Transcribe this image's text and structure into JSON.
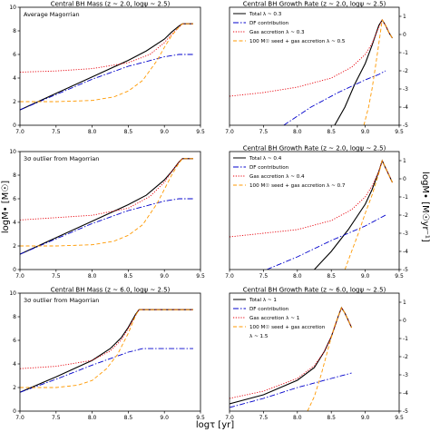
{
  "figure": {
    "x_axis_label": "logτ [yr]",
    "y_left_label": "logM• [M☉]",
    "y_right_label": "logṀ• [M☉yr⁻¹]"
  },
  "colors": {
    "total": "#000000",
    "df": "#0000cc",
    "gas": "#e8000b",
    "seed": "#ff9900"
  },
  "chart_data": [
    {
      "type": "line",
      "title": "Central BH Mass (z ~ 2.0, logψ ~ 2.5)",
      "annotation": "Average Magorrian",
      "xlim": [
        7.0,
        9.5
      ],
      "ylim": [
        0,
        10
      ],
      "xticks": [
        "7.0",
        "7.5",
        "8.0",
        "8.5",
        "9.0",
        "9.5"
      ],
      "yticks": [
        "0",
        "2",
        "4",
        "6",
        "8",
        "10"
      ],
      "legend": null,
      "series": [
        {
          "key": "total",
          "style": "solid",
          "x": [
            7.0,
            7.5,
            8.0,
            8.5,
            8.75,
            9.0,
            9.1,
            9.2,
            9.25,
            9.3,
            9.4
          ],
          "y": [
            1.3,
            2.7,
            4.1,
            5.5,
            6.3,
            7.3,
            7.9,
            8.4,
            8.6,
            8.6,
            8.6
          ]
        },
        {
          "key": "df",
          "style": "dashdot",
          "x": [
            7.0,
            7.5,
            8.0,
            8.5,
            9.0,
            9.2,
            9.4
          ],
          "y": [
            1.3,
            2.6,
            3.9,
            5.0,
            5.8,
            6.0,
            6.0
          ]
        },
        {
          "key": "gas",
          "style": "dotted",
          "x": [
            7.0,
            7.5,
            8.0,
            8.5,
            8.8,
            9.0,
            9.1,
            9.2,
            9.25,
            9.3,
            9.4
          ],
          "y": [
            4.5,
            4.6,
            4.8,
            5.3,
            6.0,
            7.0,
            7.7,
            8.3,
            8.6,
            8.6,
            8.6
          ]
        },
        {
          "key": "seed",
          "style": "dashed",
          "x": [
            7.0,
            7.5,
            8.0,
            8.3,
            8.5,
            8.7,
            8.9,
            9.0,
            9.1,
            9.2,
            9.25,
            9.3,
            9.4
          ],
          "y": [
            2.0,
            2.0,
            2.1,
            2.4,
            2.9,
            3.8,
            5.5,
            6.6,
            7.6,
            8.3,
            8.6,
            8.6,
            8.6
          ]
        }
      ]
    },
    {
      "type": "line",
      "title": "Central BH Growth Rate (z ~ 2.0, logψ ~ 2.5)",
      "annotation": "",
      "xlim": [
        7.0,
        9.5
      ],
      "ylim": [
        -5,
        1.5
      ],
      "xticks": [
        "7.0",
        "7.5",
        "8.0",
        "8.5",
        "9.0",
        "9.5"
      ],
      "yticks": [
        "1",
        "0",
        "-1",
        "-2",
        "-3",
        "-4",
        "-5"
      ],
      "legend": [
        {
          "key": "total",
          "style": "solid",
          "label": "Total λ ~ 0.3"
        },
        {
          "key": "df",
          "style": "dashdot",
          "label": "DF contribution"
        },
        {
          "key": "gas",
          "style": "dotted",
          "label": "Gas accretion λ ~ 0.3"
        },
        {
          "key": "seed",
          "style": "dashed",
          "label": "100 M☉ seed + gas accretion λ ~ 0.5"
        }
      ],
      "series": [
        {
          "key": "total",
          "style": "solid",
          "x": [
            8.55,
            8.7,
            8.85,
            9.0,
            9.1,
            9.2,
            9.25,
            9.3,
            9.35,
            9.4
          ],
          "y": [
            -5.0,
            -4.0,
            -2.7,
            -1.6,
            -0.6,
            0.5,
            0.8,
            0.5,
            0.1,
            -0.2
          ]
        },
        {
          "key": "df",
          "style": "dashdot",
          "x": [
            7.8,
            8.2,
            8.6,
            9.0,
            9.2,
            9.3
          ],
          "y": [
            -5.0,
            -4.0,
            -3.2,
            -2.5,
            -2.2,
            -2.0
          ]
        },
        {
          "key": "gas",
          "style": "dotted",
          "x": [
            7.0,
            7.5,
            8.0,
            8.5,
            8.8,
            9.0,
            9.1,
            9.2,
            9.25,
            9.3,
            9.35,
            9.4
          ],
          "y": [
            -3.4,
            -3.2,
            -2.9,
            -2.4,
            -1.8,
            -1.1,
            -0.5,
            0.4,
            0.8,
            0.5,
            0.1,
            -0.2
          ]
        },
        {
          "key": "seed",
          "style": "dashed",
          "x": [
            8.98,
            9.05,
            9.1,
            9.15,
            9.2,
            9.25,
            9.3,
            9.35,
            9.4
          ],
          "y": [
            -5.0,
            -4.0,
            -3.0,
            -1.8,
            -0.5,
            0.8,
            0.5,
            0.1,
            -0.2
          ]
        }
      ]
    },
    {
      "type": "line",
      "title": "",
      "annotation": "3σ outlier from Magorrian",
      "xlim": [
        7.0,
        9.5
      ],
      "ylim": [
        0,
        10
      ],
      "xticks": [
        "7.0",
        "7.5",
        "8.0",
        "8.5",
        "9.0",
        "9.5"
      ],
      "yticks": [
        "0",
        "2",
        "4",
        "6",
        "8",
        "10"
      ],
      "legend": null,
      "series": [
        {
          "key": "total",
          "style": "solid",
          "x": [
            7.0,
            7.5,
            8.0,
            8.5,
            8.75,
            9.0,
            9.1,
            9.2,
            9.25,
            9.3,
            9.4
          ],
          "y": [
            1.3,
            2.7,
            4.1,
            5.5,
            6.3,
            7.6,
            8.3,
            9.1,
            9.4,
            9.4,
            9.4
          ]
        },
        {
          "key": "df",
          "style": "dashdot",
          "x": [
            7.0,
            7.5,
            8.0,
            8.5,
            9.0,
            9.2,
            9.4
          ],
          "y": [
            1.3,
            2.6,
            3.9,
            5.0,
            5.8,
            6.0,
            6.0
          ]
        },
        {
          "key": "gas",
          "style": "dotted",
          "x": [
            7.0,
            7.5,
            8.0,
            8.5,
            8.8,
            9.0,
            9.1,
            9.2,
            9.25,
            9.3,
            9.4
          ],
          "y": [
            4.2,
            4.4,
            4.6,
            5.2,
            6.2,
            7.4,
            8.3,
            9.1,
            9.4,
            9.4,
            9.4
          ]
        },
        {
          "key": "seed",
          "style": "dashed",
          "x": [
            7.0,
            7.5,
            8.0,
            8.3,
            8.5,
            8.7,
            8.9,
            9.0,
            9.1,
            9.2,
            9.25,
            9.3,
            9.4
          ],
          "y": [
            2.0,
            2.0,
            2.1,
            2.4,
            2.9,
            3.8,
            5.6,
            6.8,
            8.0,
            9.0,
            9.4,
            9.4,
            9.4
          ]
        }
      ]
    },
    {
      "type": "line",
      "title": "Central BH Growth Rate (z ~ 2.0, logψ ~ 2.5)",
      "annotation": "",
      "xlim": [
        7.0,
        9.5
      ],
      "ylim": [
        -5,
        1.5
      ],
      "xticks": [
        "7.0",
        "7.5",
        "8.0",
        "8.5",
        "9.0",
        "9.5"
      ],
      "yticks": [
        "1",
        "0",
        "-1",
        "-2",
        "-3",
        "-4",
        "-5"
      ],
      "legend": [
        {
          "key": "total",
          "style": "solid",
          "label": "Total λ ~ 0.4"
        },
        {
          "key": "df",
          "style": "dashdot",
          "label": "DF contribution"
        },
        {
          "key": "gas",
          "style": "dotted",
          "label": "Gas accretion λ ~ 0.4"
        },
        {
          "key": "seed",
          "style": "dashed",
          "label": "100 M☉ seed + gas accretion λ ~ 0.7"
        }
      ],
      "series": [
        {
          "key": "total",
          "style": "solid",
          "x": [
            8.25,
            8.5,
            8.75,
            9.0,
            9.1,
            9.2,
            9.25,
            9.3,
            9.35,
            9.4
          ],
          "y": [
            -5.0,
            -4.0,
            -2.8,
            -1.4,
            -0.6,
            0.4,
            1.0,
            0.6,
            0.2,
            -0.2
          ]
        },
        {
          "key": "df",
          "style": "dashdot",
          "x": [
            7.55,
            8.0,
            8.5,
            9.0,
            9.2,
            9.3
          ],
          "y": [
            -5.0,
            -4.3,
            -3.4,
            -2.6,
            -2.2,
            -2.0
          ]
        },
        {
          "key": "gas",
          "style": "dotted",
          "x": [
            7.0,
            7.5,
            8.0,
            8.5,
            8.8,
            9.0,
            9.1,
            9.2,
            9.25,
            9.3,
            9.35,
            9.4
          ],
          "y": [
            -3.2,
            -3.0,
            -2.8,
            -2.3,
            -1.7,
            -1.0,
            -0.4,
            0.4,
            1.0,
            0.6,
            0.2,
            -0.2
          ]
        },
        {
          "key": "seed",
          "style": "dashed",
          "x": [
            8.7,
            8.8,
            8.9,
            9.0,
            9.1,
            9.2,
            9.25,
            9.3,
            9.35,
            9.4
          ],
          "y": [
            -5.0,
            -4.0,
            -3.0,
            -1.9,
            -0.9,
            0.3,
            1.0,
            0.6,
            0.2,
            -0.2
          ]
        }
      ]
    },
    {
      "type": "line",
      "title": "Central BH Mass (z ~ 6.0, logψ ~ 2.5)",
      "annotation": "3σ outlier from Magorrian",
      "xlim": [
        7.0,
        9.5
      ],
      "ylim": [
        0,
        10
      ],
      "xticks": [
        "7.0",
        "7.5",
        "8.0",
        "8.5",
        "9.0",
        "9.5"
      ],
      "yticks": [
        "0",
        "2",
        "4",
        "6",
        "8",
        "10"
      ],
      "legend": null,
      "series": [
        {
          "key": "total",
          "style": "solid",
          "x": [
            7.0,
            7.5,
            8.0,
            8.25,
            8.4,
            8.5,
            8.6,
            8.65,
            8.7,
            9.0,
            9.4
          ],
          "y": [
            1.6,
            2.9,
            4.3,
            5.3,
            6.2,
            7.1,
            8.2,
            8.6,
            8.6,
            8.6,
            8.6
          ]
        },
        {
          "key": "df",
          "style": "dashdot",
          "x": [
            7.0,
            7.5,
            8.0,
            8.5,
            8.7,
            9.0,
            9.4
          ],
          "y": [
            1.6,
            2.7,
            3.9,
            5.0,
            5.3,
            5.3,
            5.3
          ]
        },
        {
          "key": "gas",
          "style": "dotted",
          "x": [
            7.0,
            7.5,
            8.0,
            8.25,
            8.4,
            8.5,
            8.6,
            8.65,
            8.7,
            9.0,
            9.4
          ],
          "y": [
            3.6,
            3.8,
            4.3,
            5.1,
            6.0,
            7.0,
            8.1,
            8.6,
            8.6,
            8.6,
            8.6
          ]
        },
        {
          "key": "seed",
          "style": "dashed",
          "x": [
            7.0,
            7.5,
            7.8,
            8.0,
            8.2,
            8.35,
            8.5,
            8.6,
            8.65,
            8.7,
            9.0,
            9.4
          ],
          "y": [
            2.0,
            2.0,
            2.2,
            2.6,
            3.6,
            4.8,
            6.6,
            8.1,
            8.6,
            8.6,
            8.6,
            8.6
          ]
        }
      ]
    },
    {
      "type": "line",
      "title": "Central BH Growth Rate (z ~ 6.0, logψ ~ 2.5)",
      "annotation": "",
      "xlim": [
        7.0,
        9.5
      ],
      "ylim": [
        -5,
        1.5
      ],
      "xticks": [
        "7.0",
        "7.5",
        "8.0",
        "8.5",
        "9.0",
        "9.5"
      ],
      "yticks": [
        "1",
        "0",
        "-1",
        "-2",
        "-3",
        "-4",
        "-5"
      ],
      "legend": [
        {
          "key": "total",
          "style": "solid",
          "label": "Total λ ~ 1"
        },
        {
          "key": "df",
          "style": "dashdot",
          "label": "DF contribution"
        },
        {
          "key": "gas",
          "style": "dotted",
          "label": "Gas accretion λ ~ 1"
        },
        {
          "key": "seed",
          "style": "dashed",
          "label": "100 M☉ seed + gas accretion"
        },
        {
          "key": "seed",
          "style": "none",
          "label": "λ ~ 1.5"
        }
      ],
      "series": [
        {
          "key": "total",
          "style": "solid",
          "x": [
            7.0,
            7.5,
            8.0,
            8.25,
            8.4,
            8.5,
            8.6,
            8.65,
            8.7,
            8.75,
            8.8
          ],
          "y": [
            -4.6,
            -4.1,
            -3.3,
            -2.6,
            -1.7,
            -0.9,
            0.2,
            0.7,
            0.4,
            0.0,
            -0.4
          ]
        },
        {
          "key": "df",
          "style": "dashdot",
          "x": [
            7.0,
            7.5,
            8.0,
            8.5,
            8.8
          ],
          "y": [
            -4.8,
            -4.3,
            -3.7,
            -3.2,
            -2.9
          ]
        },
        {
          "key": "gas",
          "style": "dotted",
          "x": [
            7.0,
            7.5,
            8.0,
            8.25,
            8.4,
            8.5,
            8.6,
            8.65,
            8.7,
            8.75,
            8.8
          ],
          "y": [
            -4.3,
            -3.9,
            -3.2,
            -2.5,
            -1.7,
            -0.9,
            0.2,
            0.7,
            0.4,
            0.0,
            -0.4
          ]
        },
        {
          "key": "seed",
          "style": "dashed",
          "x": [
            8.15,
            8.25,
            8.35,
            8.45,
            8.55,
            8.65,
            8.7,
            8.75,
            8.8
          ],
          "y": [
            -5.0,
            -4.2,
            -3.0,
            -1.6,
            -0.3,
            0.7,
            0.4,
            0.0,
            -0.4
          ]
        }
      ]
    }
  ]
}
